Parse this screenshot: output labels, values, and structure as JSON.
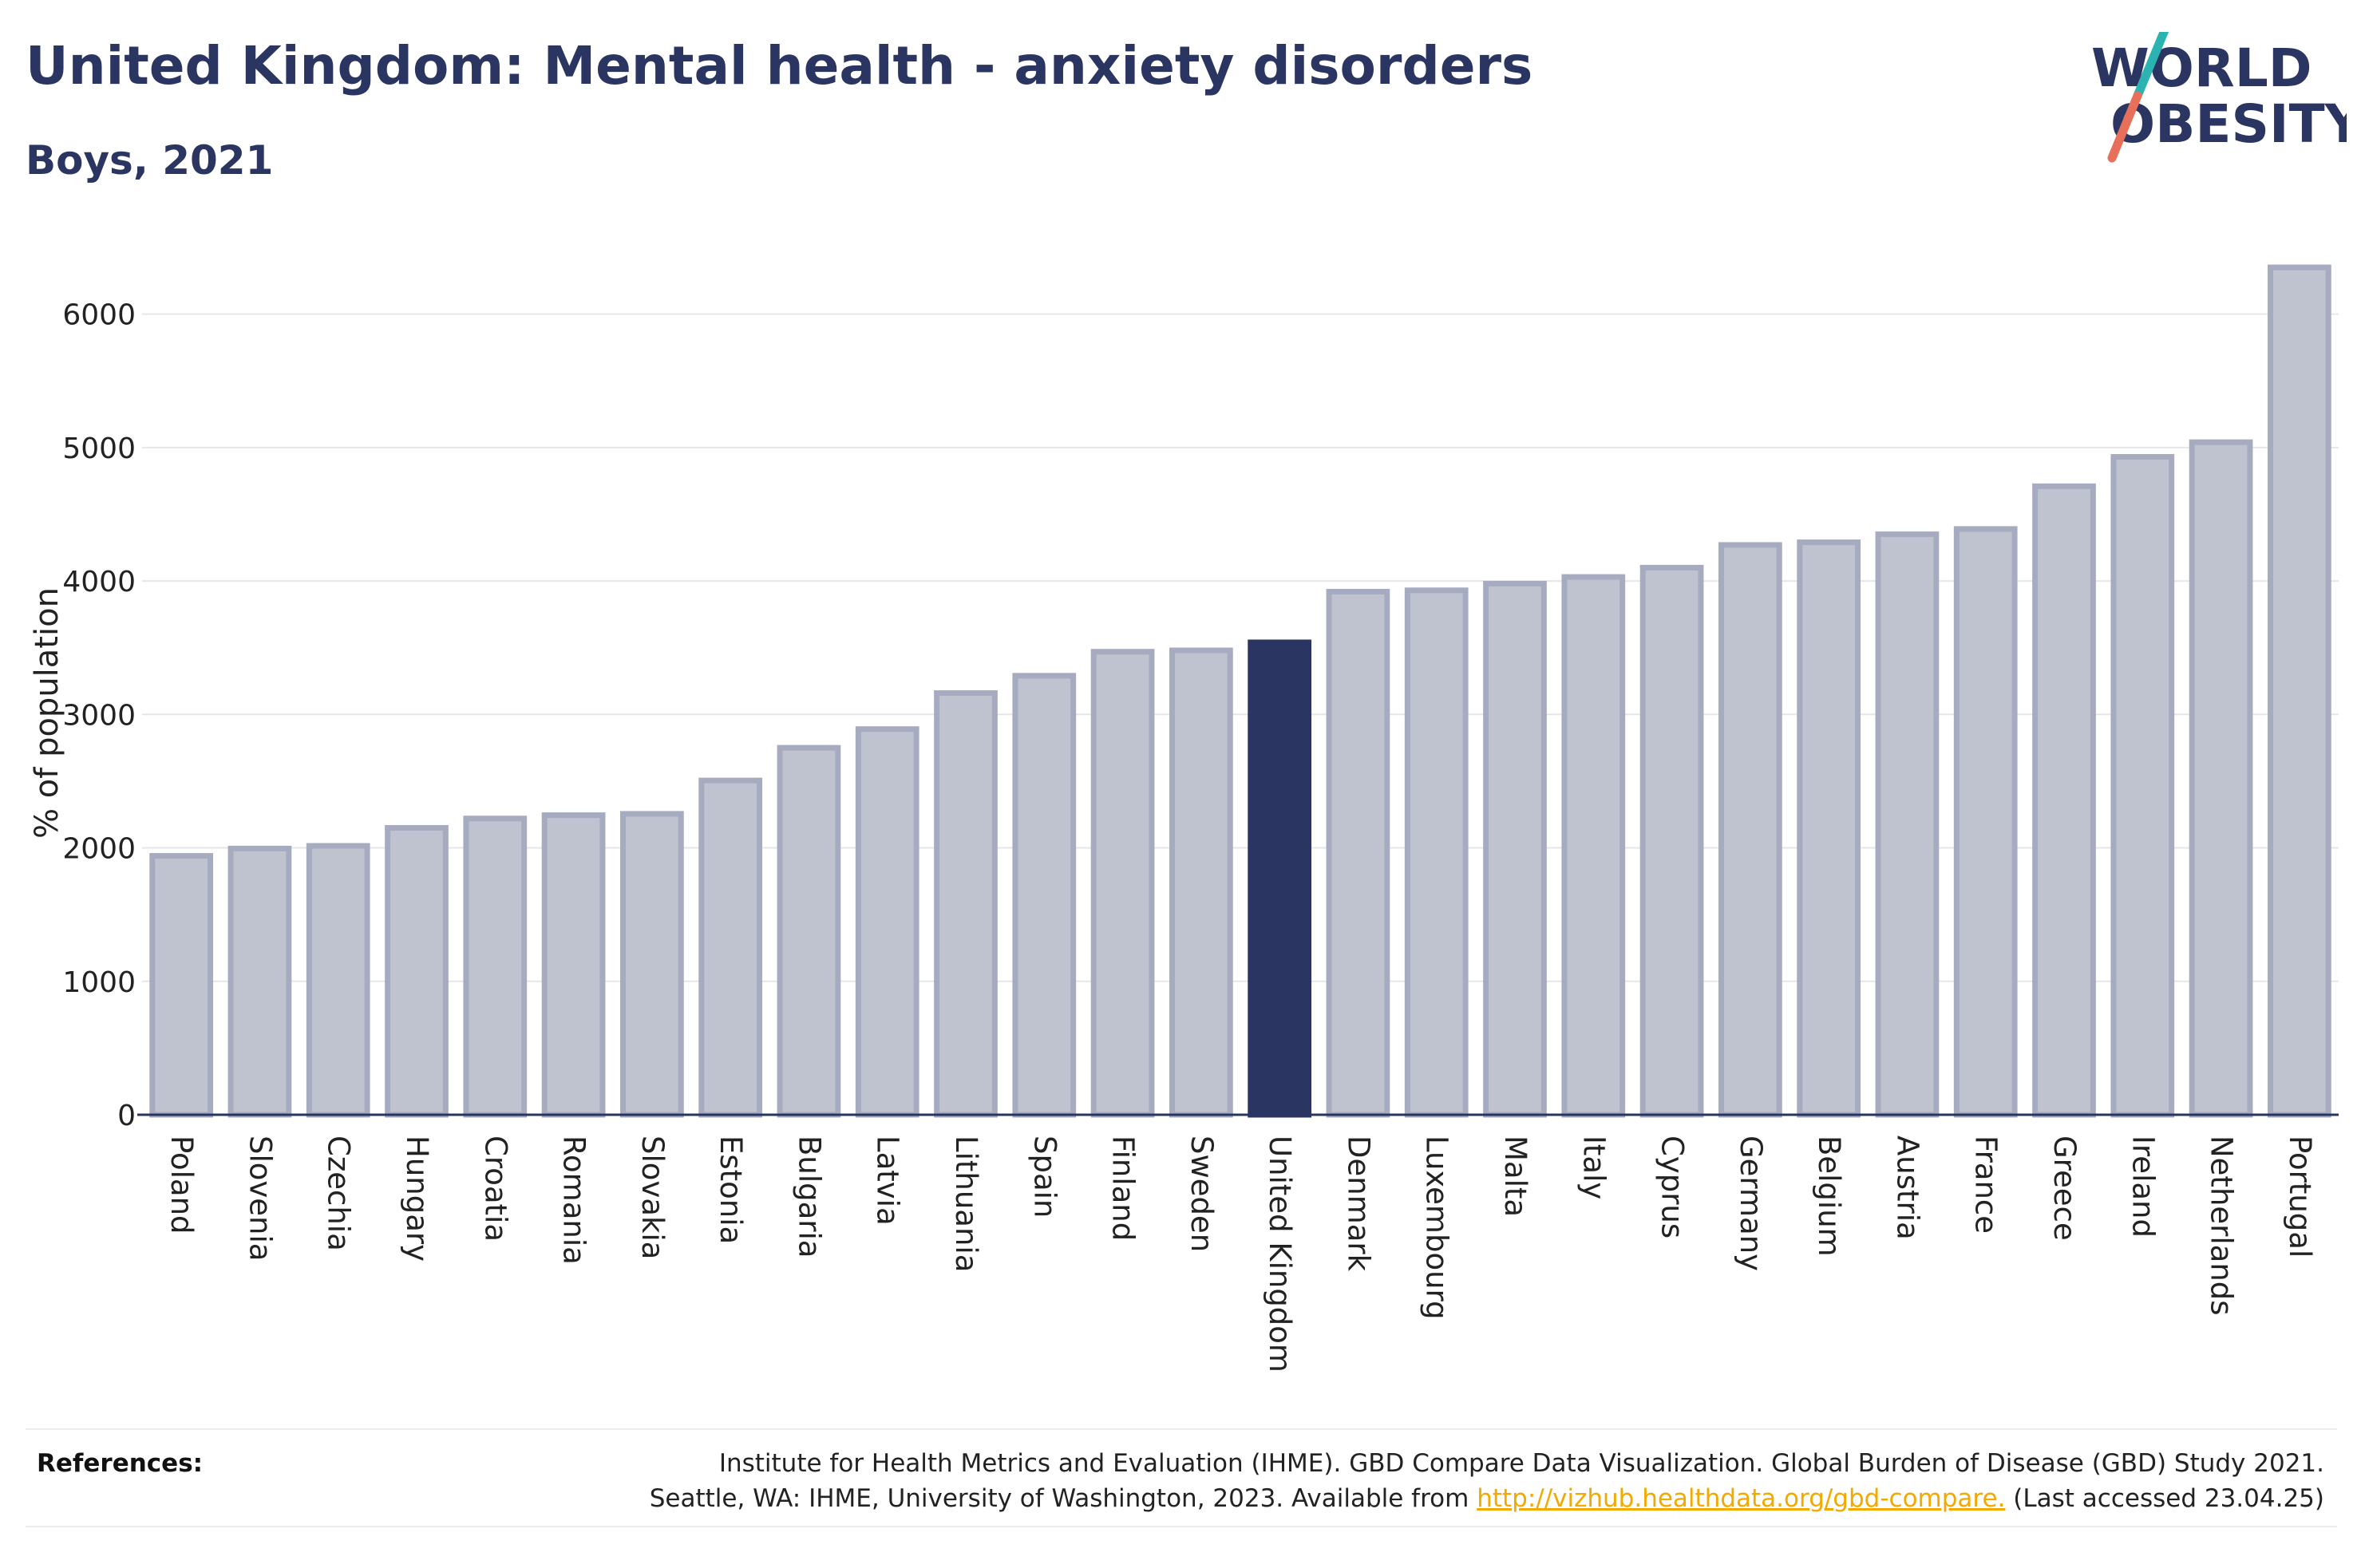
{
  "header": {
    "title": "United Kingdom: Mental health - anxiety disorders",
    "subtitle": "Boys, 2021"
  },
  "logo": {
    "line1": "WORLD",
    "line2": "OBESITY",
    "text_color": "#2b3561",
    "slash_color_top": "#2ab3b1",
    "slash_color_bottom": "#e8705a"
  },
  "colors": {
    "bar_fill": "#bfc2cf",
    "bar_stroke": "#a6abbf",
    "highlight": "#2b3561",
    "grid": "#e6e6ea",
    "axis": "#2b3561"
  },
  "chart_data": {
    "type": "bar",
    "ylabel": "% of population",
    "ylim": [
      0,
      6500
    ],
    "yticks": [
      0,
      1000,
      2000,
      3000,
      4000,
      5000,
      6000
    ],
    "grid": true,
    "highlight": "United Kingdom",
    "categories": [
      "Poland",
      "Slovenia",
      "Czechia",
      "Hungary",
      "Croatia",
      "Romania",
      "Slovakia",
      "Estonia",
      "Bulgaria",
      "Latvia",
      "Lithuania",
      "Spain",
      "Finland",
      "Sweden",
      "United Kingdom",
      "Denmark",
      "Luxembourg",
      "Malta",
      "Italy",
      "Cyprus",
      "Germany",
      "Belgium",
      "Austria",
      "France",
      "Greece",
      "Ireland",
      "Netherlands",
      "Portugal"
    ],
    "values": [
      1940,
      1995,
      2015,
      2150,
      2220,
      2245,
      2255,
      2505,
      2750,
      2890,
      3160,
      3290,
      3470,
      3480,
      3540,
      3920,
      3930,
      3980,
      4030,
      4100,
      4270,
      4290,
      4350,
      4390,
      4710,
      4930,
      5040,
      6350
    ]
  },
  "references": {
    "label": "References:",
    "text_before": "Institute for Health Metrics and Evaluation (IHME). GBD Compare Data Visualization. Global Burden of Disease (GBD) Study 2021. Seattle, WA: IHME, University of Washington, 2023. Available from ",
    "link": "http://vizhub.healthdata.org/gbd-compare.",
    "text_after": " (Last accessed 23.04.25)"
  }
}
